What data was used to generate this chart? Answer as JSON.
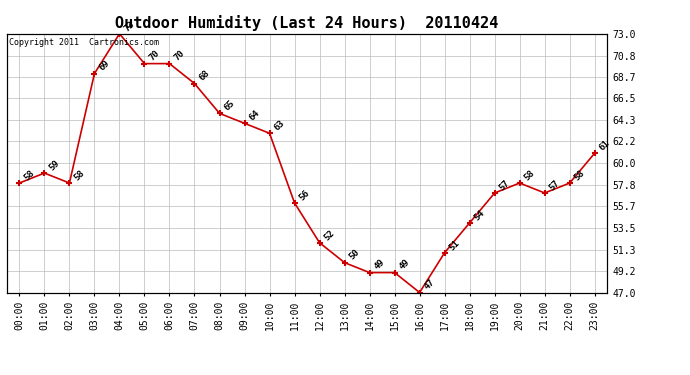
{
  "title": "Outdoor Humidity (Last 24 Hours)  20110424",
  "copyright_text": "Copyright 2011  Cartronics.com",
  "x_labels": [
    "00:00",
    "01:00",
    "02:00",
    "03:00",
    "04:00",
    "05:00",
    "06:00",
    "07:00",
    "08:00",
    "09:00",
    "10:00",
    "11:00",
    "12:00",
    "13:00",
    "14:00",
    "15:00",
    "16:00",
    "17:00",
    "18:00",
    "19:00",
    "20:00",
    "21:00",
    "22:00",
    "23:00"
  ],
  "y_values": [
    58,
    59,
    58,
    69,
    73,
    70,
    70,
    68,
    65,
    64,
    63,
    56,
    52,
    50,
    49,
    49,
    47,
    51,
    54,
    57,
    58,
    57,
    58,
    61
  ],
  "y_min": 47.0,
  "y_max": 73.0,
  "y_ticks": [
    47.0,
    49.2,
    51.3,
    53.5,
    55.7,
    57.8,
    60.0,
    62.2,
    64.3,
    66.5,
    68.7,
    70.8,
    73.0
  ],
  "line_color": "#cc0000",
  "marker_color": "#cc0000",
  "bg_color": "#ffffff",
  "grid_color": "#bbbbbb",
  "title_fontsize": 11,
  "annotation_fontsize": 6.5,
  "tick_fontsize": 7.0,
  "copyright_fontsize": 6.0
}
